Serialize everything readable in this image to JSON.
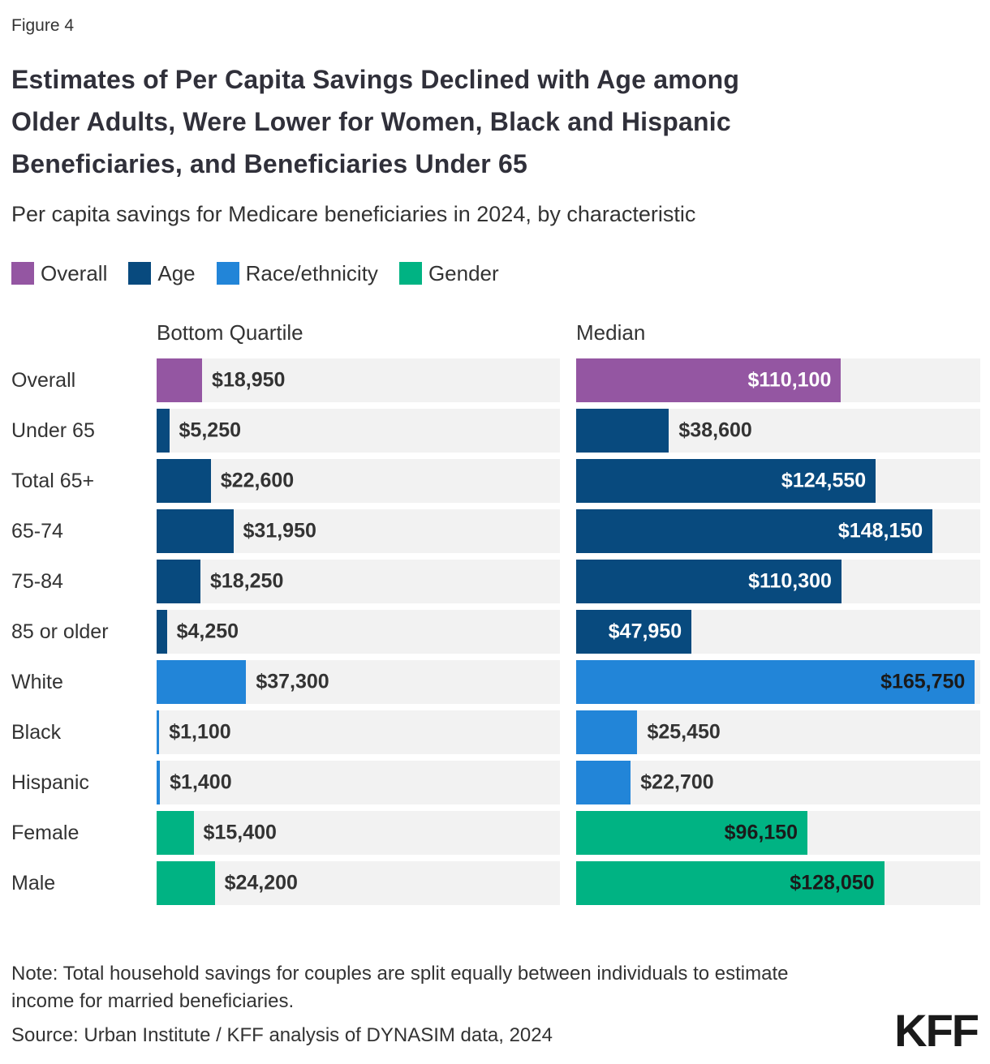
{
  "figure_label": "Figure 4",
  "title_lines": [
    "Estimates of Per Capita Savings Declined with Age among",
    "Older Adults, Were Lower for Women, Black and Hispanic",
    "Beneficiaries, and Beneficiaries Under 65"
  ],
  "legend": [
    {
      "label": "Overall",
      "color": "#9456a2"
    },
    {
      "label": "Age",
      "color": "#084a7e"
    },
    {
      "label": "Race/ethnicity",
      "color": "#2285d8"
    },
    {
      "label": "Gender",
      "color": "#00b383"
    }
  ],
  "chart_data": {
    "type": "bar",
    "orientation": "horizontal",
    "title": "Estimates of Per Capita Savings Declined with Age among Older Adults, Were Lower for Women, Black and Hispanic Beneficiaries, and Beneficiaries Under 65",
    "subtitle": "Per capita savings for Medicare beneficiaries in 2024, by characteristic",
    "column_headers": [
      "Bottom Quartile",
      "Median"
    ],
    "categories": [
      "Overall",
      "Under 65",
      "Total 65+",
      "65-74",
      "75-84",
      "85 or older",
      "White",
      "Black",
      "Hispanic",
      "Female",
      "Male"
    ],
    "category_groups": [
      "Overall",
      "Age",
      "Age",
      "Age",
      "Age",
      "Age",
      "Race/ethnicity",
      "Race/ethnicity",
      "Race/ethnicity",
      "Gender",
      "Gender"
    ],
    "group_colors": {
      "Overall": "#9456a2",
      "Age": "#084a7e",
      "Race/ethnicity": "#2285d8",
      "Gender": "#00b383"
    },
    "inside_label_colors": {
      "Overall": "#ffffff",
      "Age": "#ffffff",
      "Race/ethnicity": "#1a1a1a",
      "Gender": "#1a1a1a"
    },
    "x_max": 168000,
    "track_color": "#f2f2f2",
    "legend_position": "top",
    "grid": false,
    "series": [
      {
        "name": "Bottom Quartile",
        "values": [
          18950,
          5250,
          22600,
          31950,
          18250,
          4250,
          37300,
          1100,
          1400,
          15400,
          24200
        ],
        "display_labels": [
          "$18,950",
          "$5,250",
          "$22,600",
          "$31,950",
          "$18,250",
          "$4,250",
          "$37,300",
          "$1,100",
          "$1,400",
          "$15,400",
          "$24,200"
        ],
        "label_inside": [
          false,
          false,
          false,
          false,
          false,
          false,
          false,
          false,
          false,
          false,
          false
        ]
      },
      {
        "name": "Median",
        "values": [
          110100,
          38600,
          124550,
          148150,
          110300,
          47950,
          165750,
          25450,
          22700,
          96150,
          128050
        ],
        "display_labels": [
          "$110,100",
          "$38,600",
          "$124,550",
          "$148,150",
          "$110,300",
          "$47,950",
          "$165,750",
          "$25,450",
          "$22,700",
          "$96,150",
          "$128,050"
        ],
        "label_inside": [
          true,
          false,
          true,
          true,
          true,
          true,
          true,
          false,
          false,
          true,
          true
        ]
      }
    ]
  },
  "note_lines": [
    "Note: Total household savings for couples are split equally between individuals to estimate",
    "income for married beneficiaries."
  ],
  "source": "Source: Urban Institute / KFF analysis of DYNASIM data, 2024",
  "logo_text": "KFF"
}
